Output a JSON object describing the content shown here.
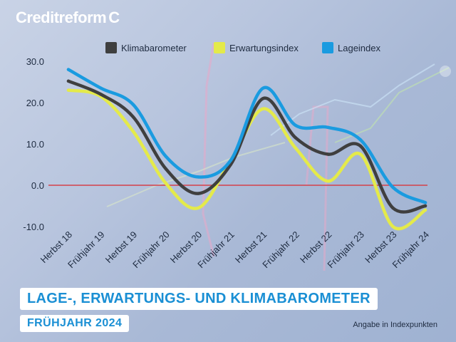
{
  "brand": {
    "name": "Creditreform",
    "mark": "C"
  },
  "footer": {
    "title": "LAGE-, ERWARTUNGS- UND KLIMABAROMETER",
    "subtitle": "FRÜHJAHR 2024",
    "note": "Angabe in Indexpunkten"
  },
  "colors": {
    "klima": "#3f3f3f",
    "erwartung": "#e4ea4a",
    "lage": "#1a9be0",
    "zero_line": "#d4404a"
  },
  "chart_data": {
    "type": "line",
    "categories": [
      "Herbst 18",
      "Frühjahr 19",
      "Herbst 19",
      "Frühjahr 20",
      "Herbst 20",
      "Frühjahr 21",
      "Herbst 21",
      "Frühjahr 22",
      "Herbst 22",
      "Frühjahr 23",
      "Herbst 23",
      "Frühjahr 24"
    ],
    "series": [
      {
        "name": "Klimabarometer",
        "color": "#3f3f3f",
        "values": [
          25.2,
          22.0,
          16.5,
          4.0,
          -2.0,
          5.0,
          21.0,
          11.5,
          7.5,
          9.5,
          -5.5,
          -5.0
        ]
      },
      {
        "name": "Erwartungsindex",
        "color": "#e4ea4a",
        "values": [
          23.0,
          21.5,
          13.0,
          0.5,
          -5.5,
          6.0,
          18.5,
          9.0,
          1.0,
          7.5,
          -10.0,
          -6.0
        ]
      },
      {
        "name": "Lageindex",
        "color": "#1a9be0",
        "values": [
          28.0,
          23.5,
          19.5,
          7.0,
          2.0,
          6.0,
          23.5,
          14.5,
          14.0,
          11.0,
          -0.5,
          -4.2
        ]
      }
    ],
    "yticks": [
      "30.0",
      "20.0",
      "10.0",
      "0.0",
      "-10.0"
    ],
    "ylim": [
      -13,
      32
    ],
    "legend_position": "top",
    "grid": false
  }
}
